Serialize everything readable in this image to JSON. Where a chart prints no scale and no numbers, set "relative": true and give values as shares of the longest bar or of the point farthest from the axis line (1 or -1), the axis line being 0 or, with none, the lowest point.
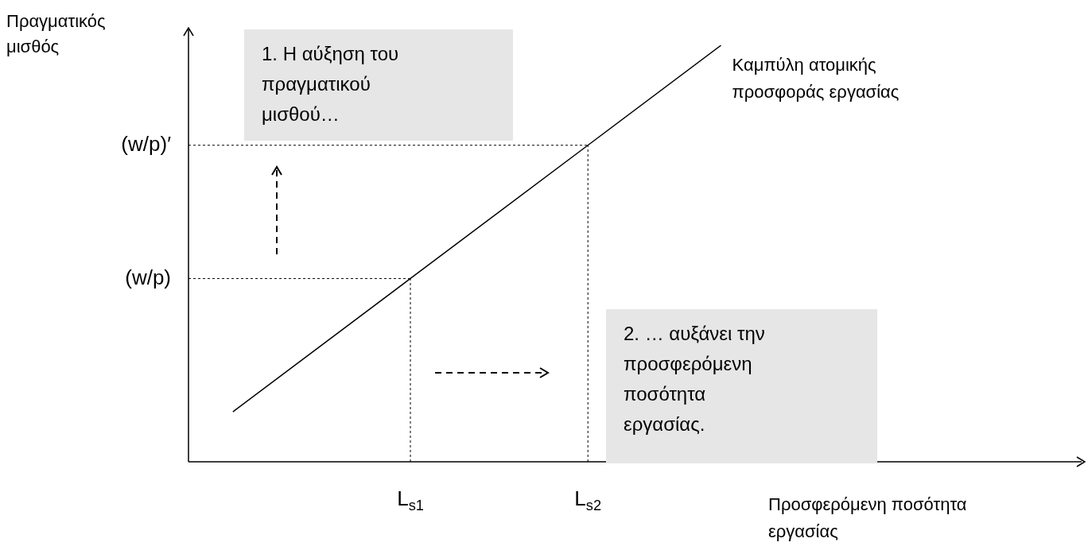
{
  "chart_data": {
    "type": "line",
    "relative": true,
    "marker": "none",
    "legend": false,
    "xlabel": "Προσφερόμενη ποσότητα εργασίας",
    "ylabel": "Πραγματικός μισθός",
    "categories": [
      null,
      null,
      null,
      null,
      null,
      "L$_{s1}$",
      null,
      null,
      null,
      "L$_{s2}$",
      null,
      null,
      null,
      null,
      null,
      null,
      null,
      null,
      null,
      null,
      null
    ],
    "series": [
      {
        "name": "Καμπύλη ατομικής προσφοράς εργασίας",
        "color": "#000000",
        "line_style": "solid",
        "values": [
          null,
          0.12,
          null,
          null,
          null,
          0.44,
          null,
          null,
          null,
          0.76,
          null,
          null,
          1.0,
          null,
          null,
          null,
          null,
          null,
          null,
          null,
          null
        ]
      }
    ],
    "ref_lines": [
      {
        "axis": "y",
        "value": 0.44,
        "label": "(w/p)",
        "color": "#000000",
        "line_style": "dotted"
      },
      {
        "axis": "y",
        "value": 0.76,
        "label": "(w/p)′",
        "color": "#000000",
        "line_style": "dotted"
      },
      {
        "axis": "x",
        "value": "L$_{s1}$",
        "color": "#000000",
        "line_style": "dotted"
      },
      {
        "axis": "x",
        "value": "L$_{s2}$",
        "color": "#000000",
        "line_style": "dotted"
      }
    ],
    "annotations": [
      "1. Η αύξηση του πραγματικού μισθού…",
      "2. … αυξάνει την προσφερόμενη ποσότητα εργασίας."
    ]
  }
}
